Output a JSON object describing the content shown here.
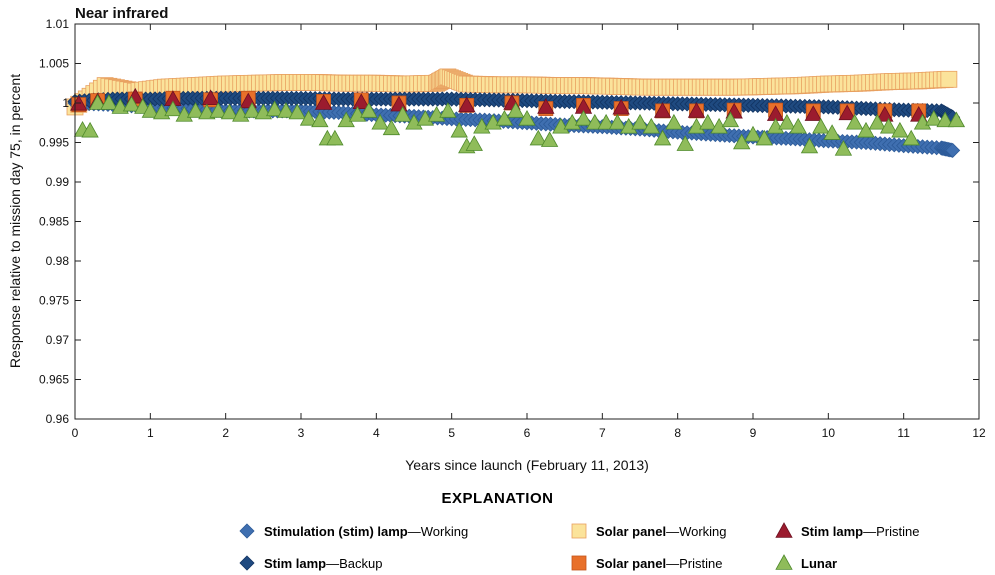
{
  "chart_data": {
    "type": "scatter",
    "title": "Near infrared",
    "xlabel": "Years since launch (February 11, 2013)",
    "ylabel": "Response relative to mission day 75, in percent",
    "xlim": [
      0,
      12
    ],
    "ylim": [
      0.96,
      1.01
    ],
    "xticks": [
      "0",
      "1",
      "2",
      "3",
      "4",
      "5",
      "6",
      "7",
      "8",
      "9",
      "10",
      "11",
      "12"
    ],
    "yticks": [
      "0.96",
      "0.965",
      "0.97",
      "0.975",
      "0.98",
      "0.985",
      "0.99",
      "0.995",
      "1",
      "1.005",
      "1.01"
    ],
    "grid": false,
    "legend_title": "EXPLANATION",
    "legend_placement": "bottom",
    "series": [
      {
        "name_bold": "Solar panel",
        "name_rest": "—Working",
        "marker": "square",
        "color": "#fbe39b",
        "edge": "#e8a060",
        "x": [
          0,
          0.4,
          0.8,
          1.2,
          1.6,
          2,
          2.4,
          2.8,
          3.2,
          3.6,
          4,
          4.4,
          4.8,
          4.95,
          5.2,
          5.6,
          6,
          6.4,
          6.8,
          7.2,
          7.6,
          8,
          8.4,
          8.8,
          9.2,
          9.6,
          10,
          10.4,
          10.8,
          11.2,
          11.6
        ],
        "y": [
          0.9995,
          1.0022,
          1.0015,
          1.002,
          1.0022,
          1.0024,
          1.0025,
          1.0026,
          1.0026,
          1.0025,
          1.0025,
          1.0024,
          1.0025,
          1.0033,
          1.0024,
          1.0023,
          1.0023,
          1.0022,
          1.0022,
          1.0021,
          1.002,
          1.002,
          1.002,
          1.002,
          1.0021,
          1.0022,
          1.0024,
          1.0025,
          1.0027,
          1.0028,
          1.003
        ]
      },
      {
        "name_bold": "Stimulation (stim) lamp",
        "name_rest": "—Working",
        "marker": "diamond",
        "color": "#3f6fb0",
        "edge": "#2c5a98",
        "x": [
          0,
          0.5,
          1,
          1.5,
          2,
          2.5,
          3,
          3.5,
          4,
          4.5,
          5,
          5.5,
          6,
          6.5,
          7,
          7.5,
          8,
          8.5,
          9,
          9.5,
          10,
          10.5,
          11,
          11.5,
          11.65
        ],
        "y": [
          1.0,
          0.9998,
          0.9995,
          0.9993,
          0.999,
          0.999,
          0.999,
          0.9988,
          0.9985,
          0.9983,
          0.998,
          0.9978,
          0.9975,
          0.9972,
          0.997,
          0.9967,
          0.9963,
          0.996,
          0.9957,
          0.9955,
          0.9952,
          0.995,
          0.9946,
          0.9943,
          0.994
        ]
      },
      {
        "name_bold": "Stim lamp",
        "name_rest": "—Backup",
        "marker": "diamond",
        "color": "#1f4a80",
        "edge": "#123462",
        "x": [
          0,
          0.5,
          1,
          1.5,
          2,
          2.5,
          3,
          3.5,
          4,
          4.5,
          5,
          5.5,
          6,
          6.5,
          7,
          7.5,
          8,
          8.5,
          9,
          9.5,
          10,
          10.5,
          11,
          11.5,
          11.65
        ],
        "y": [
          1.0002,
          1.0005,
          1.0005,
          1.0006,
          1.0006,
          1.0006,
          1.0006,
          1.0005,
          1.0005,
          1.0005,
          1.0005,
          1.0004,
          1.0003,
          1.0002,
          1.0001,
          1.0,
          0.9999,
          0.9998,
          0.9997,
          0.9996,
          0.9995,
          0.9993,
          0.9991,
          0.999,
          0.9982
        ]
      },
      {
        "name_bold": "Solar panel",
        "name_rest": "—Pristine",
        "marker": "square",
        "color": "#e8702a",
        "edge": "#c4541a",
        "x": [
          0.05,
          0.3,
          0.8,
          1.3,
          1.8,
          2.3,
          3.3,
          3.8,
          4.3,
          5.2,
          5.8,
          6.25,
          6.75,
          7.25,
          7.8,
          8.25,
          8.75,
          9.3,
          9.8,
          10.25,
          10.75,
          11.2
        ],
        "y": [
          0.9998,
          1.0003,
          1.0005,
          1.0006,
          1.0004,
          1.0006,
          1.0002,
          1.0004,
          1.0,
          0.9997,
          1.0,
          0.9993,
          0.9997,
          0.9993,
          0.999,
          0.999,
          0.9991,
          0.9991,
          0.999,
          0.999,
          0.999,
          0.999
        ]
      },
      {
        "name_bold": "Stim lamp",
        "name_rest": "—Pristine",
        "marker": "triangle",
        "color": "#9b1b2e",
        "edge": "#6e1020",
        "x": [
          0.05,
          0.3,
          0.8,
          1.3,
          1.8,
          2.3,
          3.3,
          3.8,
          4.3,
          5.2,
          5.8,
          6.25,
          6.75,
          7.25,
          7.8,
          8.25,
          8.75,
          9.3,
          9.8,
          10.25,
          10.75,
          11.2
        ],
        "y": [
          0.9999,
          1.0002,
          1.0008,
          1.0005,
          1.0006,
          1.0002,
          1.0,
          1.0001,
          0.9998,
          0.9997,
          1.0,
          0.9995,
          0.9995,
          0.9994,
          0.999,
          0.999,
          0.9989,
          0.9986,
          0.9986,
          0.9987,
          0.9985,
          0.9985
        ]
      },
      {
        "name_bold": "Lunar",
        "name_rest": "",
        "marker": "triangle",
        "color": "#8fbc5a",
        "edge": "#4f8a2c",
        "x": [
          0.1,
          0.2,
          0.3,
          0.45,
          0.6,
          0.75,
          0.9,
          1.0,
          1.15,
          1.3,
          1.45,
          1.6,
          1.75,
          1.9,
          2.05,
          2.2,
          2.35,
          2.5,
          2.65,
          2.8,
          2.95,
          3.1,
          3.25,
          3.35,
          3.45,
          3.6,
          3.75,
          3.9,
          4.05,
          4.2,
          4.35,
          4.5,
          4.65,
          4.8,
          4.95,
          5.1,
          5.2,
          5.3,
          5.4,
          5.55,
          5.7,
          5.85,
          6.0,
          6.15,
          6.3,
          6.45,
          6.6,
          6.75,
          6.9,
          7.05,
          7.2,
          7.35,
          7.5,
          7.65,
          7.8,
          7.95,
          8.1,
          8.25,
          8.4,
          8.55,
          8.7,
          8.85,
          9.0,
          9.15,
          9.3,
          9.45,
          9.6,
          9.75,
          9.9,
          10.05,
          10.2,
          10.35,
          10.5,
          10.65,
          10.8,
          10.95,
          11.1,
          11.25,
          11.4,
          11.55,
          11.7
        ],
        "y": [
          0.9966,
          0.9965,
          1.0,
          1.0,
          0.9995,
          0.9998,
          0.9995,
          0.999,
          0.9988,
          0.9992,
          0.9985,
          0.999,
          0.9988,
          0.999,
          0.9988,
          0.9985,
          0.999,
          0.9988,
          0.9992,
          0.999,
          0.9988,
          0.998,
          0.9978,
          0.9955,
          0.9955,
          0.9978,
          0.9985,
          0.999,
          0.9975,
          0.9968,
          0.9985,
          0.9975,
          0.998,
          0.9985,
          0.999,
          0.9965,
          0.9945,
          0.9948,
          0.997,
          0.9975,
          0.998,
          0.999,
          0.998,
          0.9955,
          0.9953,
          0.997,
          0.9975,
          0.998,
          0.9975,
          0.9975,
          0.9975,
          0.997,
          0.9975,
          0.997,
          0.9955,
          0.9975,
          0.9948,
          0.997,
          0.9975,
          0.997,
          0.9978,
          0.995,
          0.996,
          0.9955,
          0.997,
          0.9975,
          0.997,
          0.9945,
          0.997,
          0.9962,
          0.9942,
          0.9975,
          0.9965,
          0.9975,
          0.997,
          0.9965,
          0.9955,
          0.9975,
          0.998,
          0.9978,
          0.9978
        ]
      }
    ]
  }
}
